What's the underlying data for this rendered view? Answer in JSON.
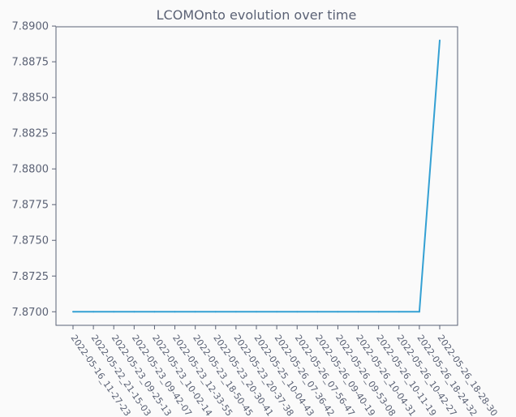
{
  "chart_data": {
    "type": "line",
    "title": "LCOMOnto evolution over time",
    "xlabel": "",
    "ylabel": "",
    "x": [
      "2022-05-16_11-27-23",
      "2022-05-22_21-15-03",
      "2022-05-23_09-25-13",
      "2022-05-23_09-42-07",
      "2022-05-23_10-02-14",
      "2022-05-23_12-33-55",
      "2022-05-23_18-50-45",
      "2022-05-23_20-30-41",
      "2022-05-23_20-37-38",
      "2022-05-25_10-04-43",
      "2022-05-26_07-36-42",
      "2022-05-26_07-56-47",
      "2022-05-26_09-40-19",
      "2022-05-26_09-53-08",
      "2022-05-26_10-04-31",
      "2022-05-26_10-11-19",
      "2022-05-26_10-42-27",
      "2022-05-26_18-24-32",
      "2022-05-26_18-28-30"
    ],
    "series": [
      {
        "values": [
          7.87,
          7.87,
          7.87,
          7.87,
          7.87,
          7.87,
          7.87,
          7.87,
          7.87,
          7.87,
          7.87,
          7.87,
          7.87,
          7.87,
          7.87,
          7.87,
          7.87,
          7.87,
          7.889
        ],
        "color": "#34a0d3"
      }
    ],
    "yticks": [
      "7.8700",
      "7.8725",
      "7.8750",
      "7.8775",
      "7.8800",
      "7.8825",
      "7.8850",
      "7.8875",
      "7.8900"
    ],
    "ylim": [
      7.86905,
      7.88995
    ],
    "grid": false,
    "legend": "none",
    "colors": {
      "background": "#fafafa",
      "axes": "#5b6275",
      "text": "#5b6275"
    }
  }
}
